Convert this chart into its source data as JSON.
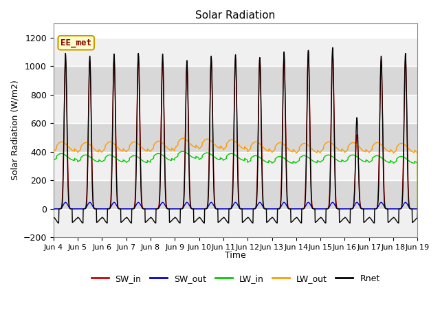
{
  "title": "Solar Radiation",
  "ylabel": "Solar Radiation (W/m2)",
  "xlabel": "Time",
  "xlim_start": 0,
  "xlim_end": 360,
  "ylim": [
    -200,
    1300
  ],
  "yticks": [
    -200,
    0,
    200,
    400,
    600,
    800,
    1000,
    1200
  ],
  "background_color": "#ffffff",
  "plot_bg_color_light": "#f0f0f0",
  "plot_bg_color_dark": "#d8d8d8",
  "grid_color": "#ffffff",
  "n_days": 15,
  "colors": {
    "SW_in": "#cc0000",
    "SW_out": "#0000cc",
    "LW_in": "#00cc00",
    "LW_out": "#ff9900",
    "Rnet": "#000000"
  },
  "legend_labels": [
    "SW_in",
    "SW_out",
    "LW_in",
    "LW_out",
    "Rnet"
  ],
  "watermark": "EE_met",
  "xtick_labels": [
    "Jun 4",
    "Jun 5",
    "Jun 6",
    "Jun 7",
    "Jun 8",
    "Jun 9",
    "Jun 10",
    "Jun 11",
    "Jun 12",
    "Jun 13",
    "Jun 14",
    "Jun 15",
    "Jun 16",
    "Jun 17",
    "Jun 18",
    "Jun 19"
  ],
  "xtick_positions": [
    0,
    24,
    48,
    72,
    96,
    120,
    144,
    168,
    192,
    216,
    240,
    264,
    288,
    312,
    336,
    360
  ]
}
